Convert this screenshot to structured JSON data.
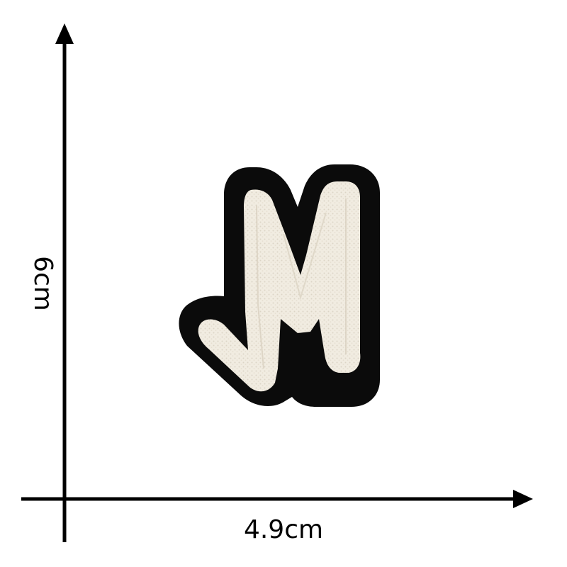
{
  "dimensions": {
    "width_label": "4.9cm",
    "height_label": "6cm"
  },
  "patch": {
    "letter_shape": "M-letter-patch",
    "border_color": "#0b0b0b",
    "fill_color": "#f1ece1",
    "texture": "chenille"
  },
  "colors": {
    "background": "#ffffff",
    "axis": "#000000"
  }
}
